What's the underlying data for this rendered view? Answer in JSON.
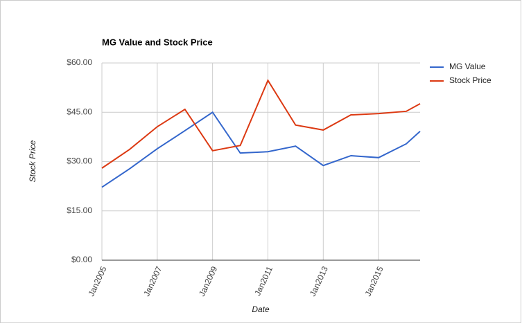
{
  "chart_data": {
    "type": "line",
    "title": "MG Value and Stock Price",
    "x_label": "Date",
    "y_label": "Stock Price",
    "x": [
      2005,
      2006,
      2007,
      2008,
      2009,
      2010,
      2011,
      2012,
      2013,
      2014,
      2015,
      2016,
      2016.5
    ],
    "series": [
      {
        "name": "MG Value",
        "color": "#3366cc",
        "values": [
          22.2,
          27.8,
          33.9,
          39.4,
          45,
          32.6,
          33,
          34.7,
          28.8,
          31.8,
          31.2,
          35.4,
          39.2
        ]
      },
      {
        "name": "Stock Price",
        "color": "#dc3912",
        "values": [
          28,
          33.7,
          40.6,
          45.9,
          33.3,
          34.9,
          54.7,
          41.1,
          39.6,
          44.2,
          44.6,
          45.3,
          47.6
        ]
      }
    ],
    "xlim": [
      2005,
      2016.5
    ],
    "xticks": [
      {
        "value": 2005,
        "label": "Jan2005"
      },
      {
        "value": 2007,
        "label": "Jan2007"
      },
      {
        "value": 2009,
        "label": "Jan2009"
      },
      {
        "value": 2011,
        "label": "Jan2011"
      },
      {
        "value": 2013,
        "label": "Jan2013"
      },
      {
        "value": 2015,
        "label": "Jan2015"
      }
    ],
    "ylim": [
      0,
      60
    ],
    "yticks": [
      {
        "value": 0,
        "label": "$0.00"
      },
      {
        "value": 15,
        "label": "$15.00"
      },
      {
        "value": 30,
        "label": "$30.00"
      },
      {
        "value": 45,
        "label": "$45.00"
      },
      {
        "value": 60,
        "label": "$60.00"
      }
    ],
    "grid": true,
    "legend": "right"
  }
}
